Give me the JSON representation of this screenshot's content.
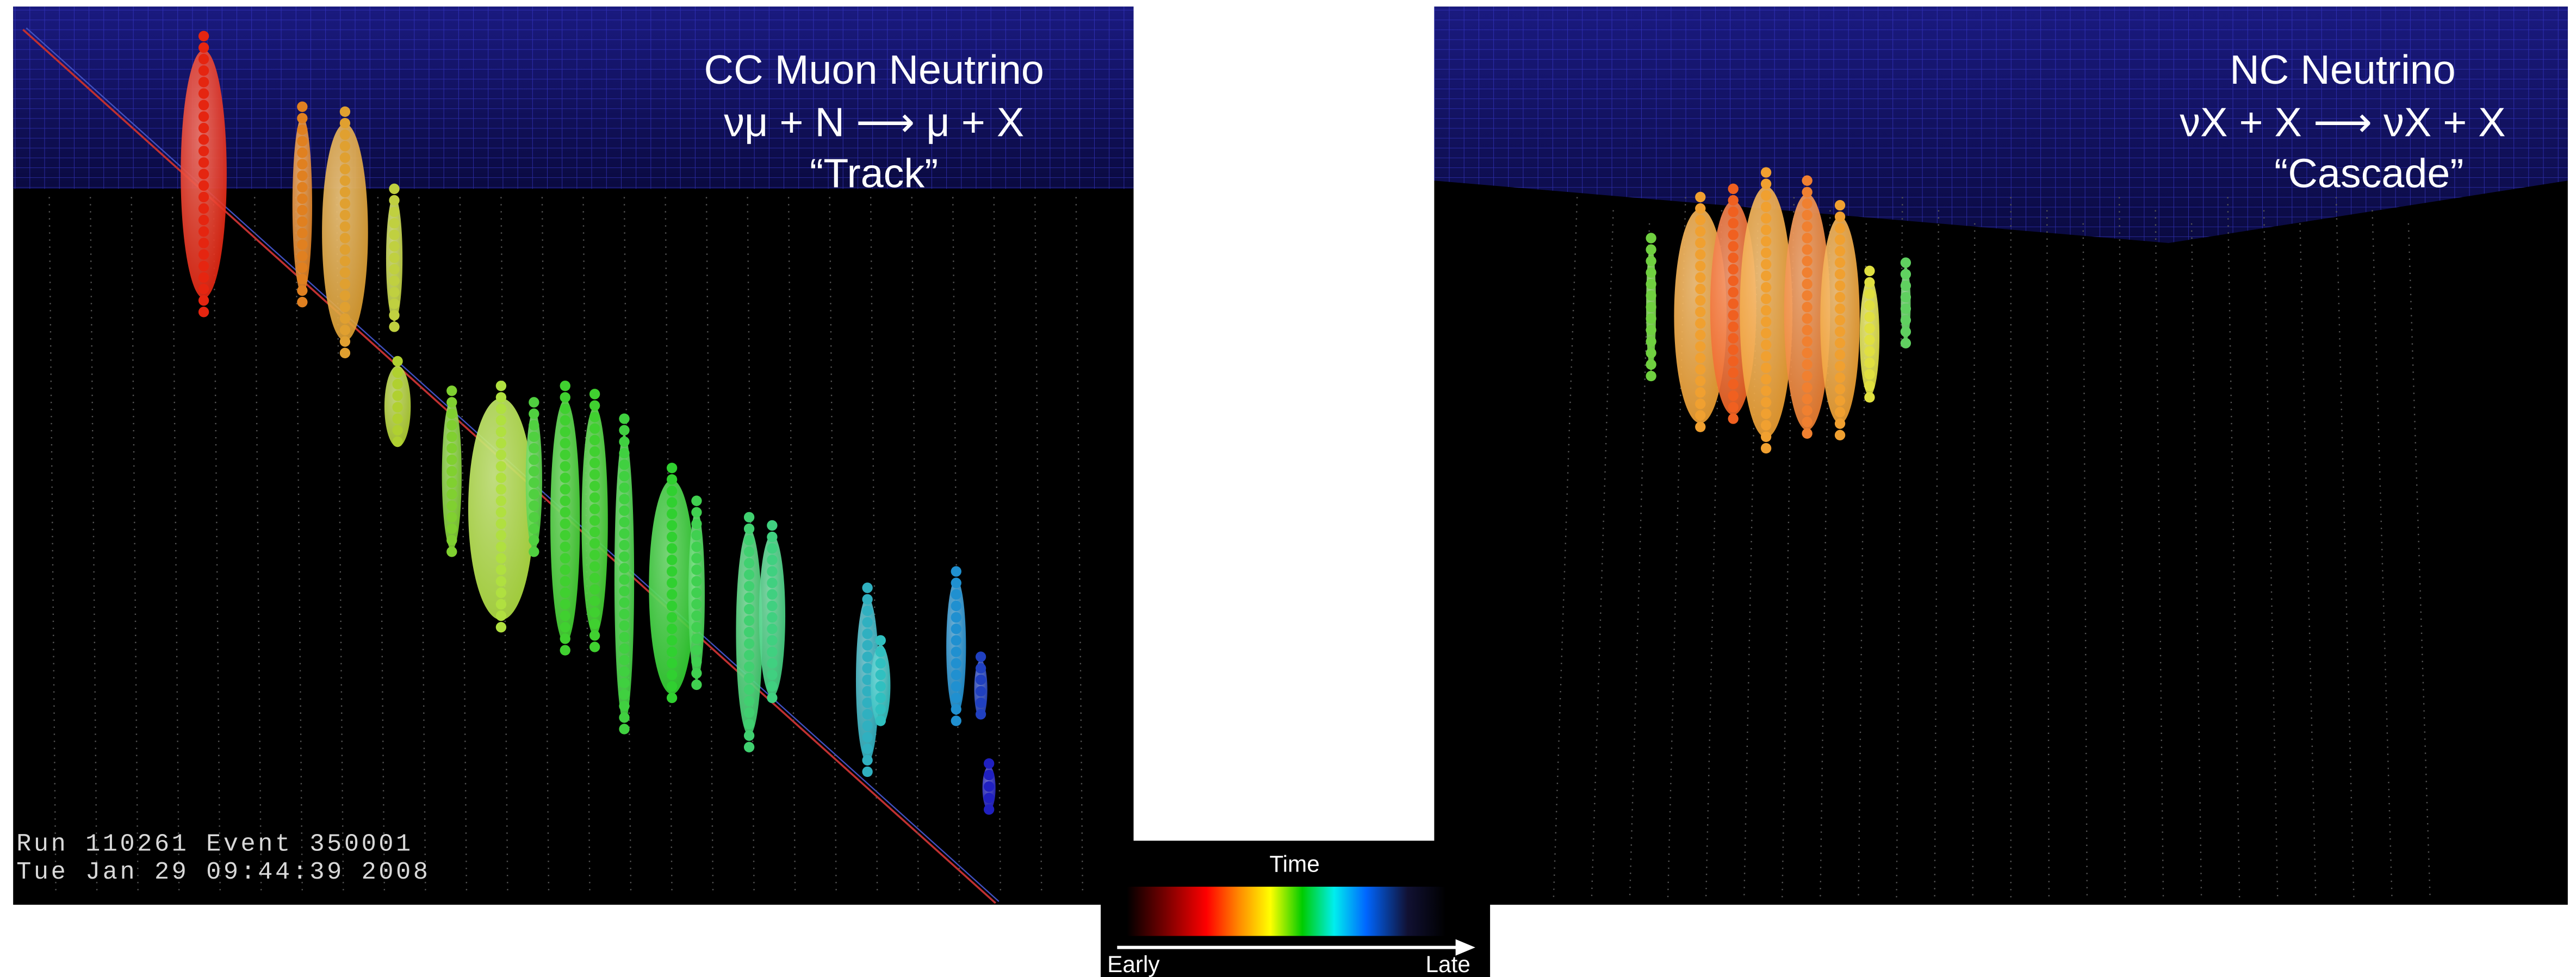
{
  "left_panel": {
    "title": "CC Muon Neutrino",
    "reaction": "νμ + N ⟶ μ + X",
    "label": "“Track”",
    "run_info": "Run 110261  Event 350001",
    "timestamp": "Tue Jan 29 09:44:39 2008"
  },
  "right_panel": {
    "title": "NC Neutrino",
    "reaction": "νX + X ⟶ νX + X",
    "label": "“Cascade”"
  },
  "colorbar": {
    "title": "Time",
    "start_label": "Early",
    "end_label": "Late"
  }
}
